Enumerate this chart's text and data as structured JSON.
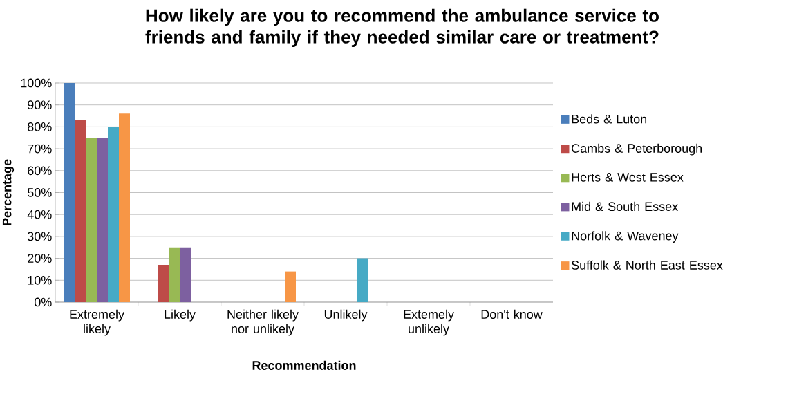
{
  "chart_data": {
    "type": "bar",
    "title": "How likely are you to recommend the ambulance service to friends and family if they needed similar care or treatment?",
    "xlabel": "Recommendation",
    "ylabel": "Percentage",
    "categories": [
      "Extremely likely",
      "Likely",
      "Neither likely nor unlikely",
      "Unlikely",
      "Extemely unlikely",
      "Don't know"
    ],
    "series": [
      {
        "name": "Beds & Luton",
        "color": "#4a7ebb",
        "values": [
          100,
          0,
          0,
          0,
          0,
          0
        ]
      },
      {
        "name": "Cambs & Peterborough",
        "color": "#be4b48",
        "values": [
          83,
          17,
          0,
          0,
          0,
          0
        ]
      },
      {
        "name": "Herts & West Essex",
        "color": "#98b954",
        "values": [
          75,
          25,
          0,
          0,
          0,
          0
        ]
      },
      {
        "name": "Mid & South Essex",
        "color": "#7d60a0",
        "values": [
          75,
          25,
          0,
          0,
          0,
          0
        ]
      },
      {
        "name": "Norfolk & Waveney",
        "color": "#46aac5",
        "values": [
          80,
          0,
          0,
          20,
          0,
          0
        ]
      },
      {
        "name": "Suffolk & North East Essex",
        "color": "#f79646",
        "values": [
          86,
          0,
          14,
          0,
          0,
          0
        ]
      }
    ],
    "ylim": [
      0,
      100
    ],
    "yticks": [
      {
        "value": 0,
        "label": "0%"
      },
      {
        "value": 10,
        "label": "10%"
      },
      {
        "value": 20,
        "label": "20%"
      },
      {
        "value": 30,
        "label": "30%"
      },
      {
        "value": 40,
        "label": "40%"
      },
      {
        "value": 50,
        "label": "50%"
      },
      {
        "value": 60,
        "label": "60%"
      },
      {
        "value": 70,
        "label": "70%"
      },
      {
        "value": 80,
        "label": "80%"
      },
      {
        "value": 90,
        "label": "90%"
      },
      {
        "value": 100,
        "label": "100%"
      }
    ],
    "grid": "y",
    "legend": "right"
  }
}
